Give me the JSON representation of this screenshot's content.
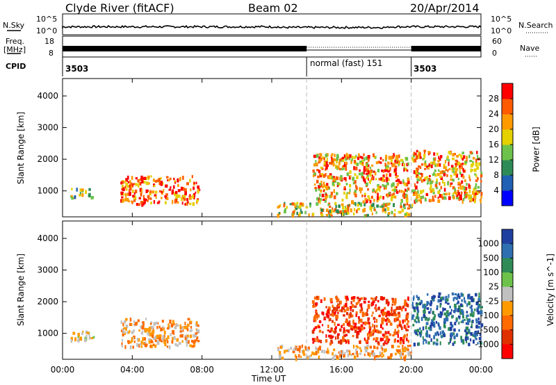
{
  "header": {
    "station": "Clyde River (fitACF)",
    "beam": "Beam 02",
    "date": "20/Apr/2014"
  },
  "summary": {
    "nsky_label": "N.Sky",
    "nsky_ticks": [
      "10^5",
      "10^0"
    ],
    "nsearch_label": "N.Search",
    "nsearch_ticks": [
      "10^5",
      "10^0"
    ],
    "freq_label_1": "Freq.",
    "freq_label_2": "[MHz]",
    "freq_ticks": [
      "18",
      "8"
    ],
    "nave_label": "Nave",
    "nave_ticks": [
      "60",
      "0"
    ],
    "cpid_label": "CPID",
    "cpid_segments": [
      {
        "text": "3503",
        "start_hour": 0
      },
      {
        "text": "normal (fast) 151",
        "start_hour": 14
      },
      {
        "text": "3503",
        "start_hour": 20
      }
    ]
  },
  "x_axis": {
    "label": "Time UT",
    "ticks": [
      "00:00",
      "04:00",
      "08:00",
      "12:00",
      "16:00",
      "20:00",
      "00:00"
    ],
    "range_hours": [
      0,
      24
    ],
    "mode_change_hours": [
      14,
      20
    ]
  },
  "power_panel": {
    "ylabel": "Slant Range [km]",
    "yticks": [
      "1000",
      "2000",
      "3000",
      "4000"
    ],
    "ylim": [
      180,
      4550
    ],
    "colorbar_label": "Power [dB]",
    "colorbar_ticks": [
      "4",
      "8",
      "12",
      "16",
      "20",
      "24",
      "28"
    ],
    "colorbar_colors": [
      "#0000ff",
      "#1f5fb4",
      "#2e8b57",
      "#6cc24a",
      "#e5d000",
      "#ff9a00",
      "#ff5a00",
      "#ff0000"
    ]
  },
  "velocity_panel": {
    "ylabel": "Slant Range [km]",
    "yticks": [
      "1000",
      "2000",
      "3000",
      "4000"
    ],
    "ylim": [
      180,
      4550
    ],
    "colorbar_label": "Velocity [m s^-1]",
    "colorbar_ticks": [
      "1000",
      "500",
      "100",
      "25",
      "-25",
      "-100",
      "-500",
      "-1000"
    ],
    "colorbar_colors": [
      "#1f3fa0",
      "#2e6fb0",
      "#2e8b57",
      "#6cc24a",
      "#c0c0c0",
      "#ff9a00",
      "#ff6a00",
      "#e03000",
      "#ff0000"
    ]
  },
  "chart_data": {
    "type": "heatmap",
    "title": "Clyde River (fitACF)   Beam 02   20/Apr/2014",
    "xlabel": "Time UT",
    "ylabel": "Slant Range [km]",
    "xlim_hours": [
      0,
      24
    ],
    "ylim_km": [
      180,
      4550
    ],
    "echo_regions": [
      {
        "name": "morning-cluster",
        "t_start": 3.3,
        "t_end": 7.8,
        "r_low": 600,
        "r_high": 1500,
        "power_db": 22,
        "velocity_class": "-100"
      },
      {
        "name": "early-scatter",
        "t_start": 0.4,
        "t_end": 1.8,
        "r_low": 800,
        "r_high": 1100,
        "power_db": 10,
        "velocity_class": "-25"
      },
      {
        "name": "near-range-layer",
        "t_start": 12.3,
        "t_end": 20.0,
        "r_low": 250,
        "r_high": 650,
        "power_db": 14,
        "velocity_class": "-100"
      },
      {
        "name": "afternoon-cluster",
        "t_start": 14.3,
        "t_end": 19.8,
        "r_low": 700,
        "r_high": 2200,
        "power_db": 20,
        "velocity_class": "-500"
      },
      {
        "name": "evening-arc",
        "t_start": 20.0,
        "t_end": 24.0,
        "r_low": 700,
        "r_high": 2300,
        "power_db": 18,
        "velocity_class": "500"
      }
    ]
  }
}
